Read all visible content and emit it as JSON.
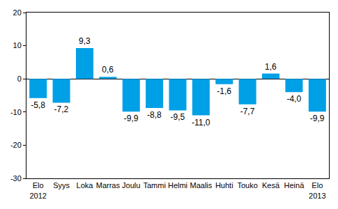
{
  "chart_data": {
    "type": "bar",
    "categories": [
      "Elo\n2012",
      "Syys",
      "Loka",
      "Marras",
      "Joulu",
      "Tammi",
      "Helmi",
      "Maalis",
      "Huhti",
      "Touko",
      "Kesä",
      "Heinä",
      "Elo\n2013"
    ],
    "values": [
      -5.8,
      -7.2,
      9.3,
      0.6,
      -9.9,
      -8.8,
      -9.5,
      -11.0,
      -1.6,
      -7.7,
      1.6,
      -4.0,
      -9.9
    ],
    "value_labels": [
      "-5,8",
      "-7,2",
      "9,3",
      "0,6",
      "-9,9",
      "-8,8",
      "-9,5",
      "-11,0",
      "-1,6",
      "-7,7",
      "1,6",
      "-4,0",
      "-9,9"
    ],
    "color": "#00a0e6",
    "ylim": [
      -30,
      20
    ],
    "yticks": [
      -30,
      -20,
      -10,
      0,
      10,
      20
    ],
    "grid": false,
    "data_labels": true
  }
}
